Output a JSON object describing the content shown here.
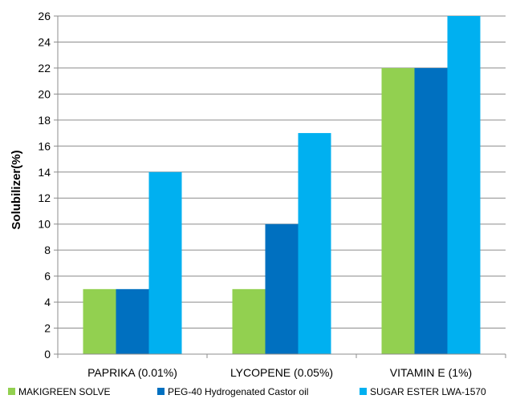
{
  "chart_data": {
    "type": "bar",
    "title": "",
    "xlabel": "",
    "ylabel": "Solubilizer(%)",
    "ylim": [
      0,
      26
    ],
    "yticks": [
      0,
      2,
      4,
      6,
      8,
      10,
      12,
      14,
      16,
      18,
      20,
      22,
      24,
      26
    ],
    "grid": true,
    "legend_position": "bottom",
    "categories": [
      "PAPRIKA (0.01%)",
      "LYCOPENE (0.05%)",
      "VITAMIN E (1%)"
    ],
    "series": [
      {
        "name": "MAKIGREEN SOLVE",
        "color": "#92d050",
        "values": [
          5,
          5,
          22
        ]
      },
      {
        "name": "PEG-40 Hydrogenated Castor oil",
        "color": "#0070c0",
        "values": [
          5,
          10,
          22
        ]
      },
      {
        "name": "SUGAR ESTER LWA-1570",
        "color": "#00b0f0",
        "values": [
          14,
          17,
          26
        ]
      }
    ]
  }
}
